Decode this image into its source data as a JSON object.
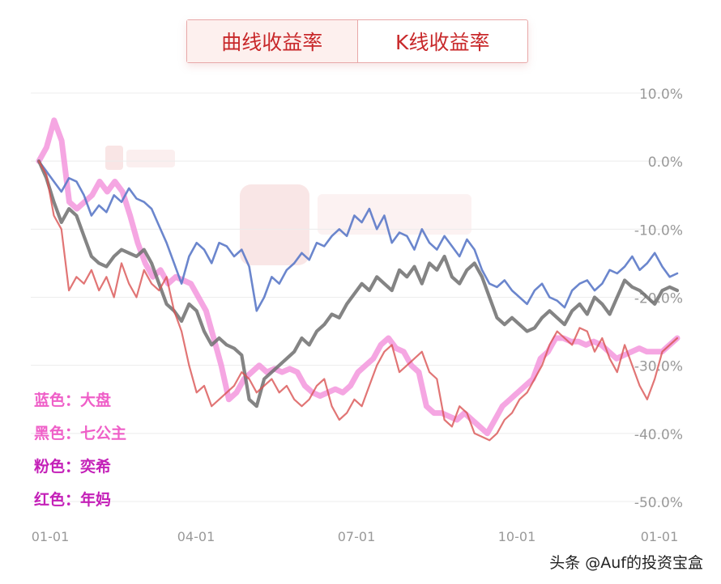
{
  "tabs": [
    {
      "label": "曲线收益率",
      "active": true
    },
    {
      "label": "K线收益率",
      "active": false
    }
  ],
  "legend": [
    {
      "text": "蓝色：大盘",
      "color": "#ef5fc8"
    },
    {
      "text": "黑色：七公主",
      "color": "#ef5fc8"
    },
    {
      "text": "粉色：奕希",
      "color": "#c420b8"
    },
    {
      "text": "红色：年妈",
      "color": "#c420b8"
    }
  ],
  "watermark": "头条 @Auf的投资宝盒",
  "chart_data": {
    "type": "line",
    "x_ticks": [
      "01-01",
      "04-01",
      "07-01",
      "10-01",
      "01-01"
    ],
    "y_ticks": [
      "10.0%",
      "0.0%",
      "-10.0%",
      "-20.0%",
      "-30.0%",
      "-40.0%",
      "-50.0%"
    ],
    "ylim": [
      -50,
      10
    ],
    "grid": true,
    "series": [
      {
        "color": "#5b79c8",
        "values": [
          0,
          -1.5,
          -3,
          -4.5,
          -2.5,
          -3,
          -5,
          -8,
          -6.5,
          -7.5,
          -5,
          -6,
          -4,
          -5.5,
          -6,
          -7,
          -9.5,
          -12,
          -15,
          -18,
          -14,
          -12,
          -13,
          -15,
          -12,
          -12.5,
          -14,
          -13,
          -15.5,
          -22,
          -20,
          -17,
          -18,
          -16,
          -15,
          -13.5,
          -14.5,
          -12,
          -12.5,
          -11,
          -10,
          -11,
          -8,
          -9,
          -7,
          -10,
          -8,
          -12,
          -10.5,
          -11,
          -13,
          -10,
          -12,
          -13,
          -11,
          -12.5,
          -14,
          -11.5,
          -13,
          -16,
          -18,
          -18.5,
          -17.5,
          -19,
          -20,
          -21,
          -19,
          -18,
          -20,
          -20.5,
          -21.5,
          -19,
          -18,
          -17.5,
          -19,
          -18,
          -16,
          -16.5,
          -15.5,
          -14,
          -16,
          -15,
          -13.5,
          -15.5,
          -17,
          -16.5
        ]
      },
      {
        "color": "#6e6e6e",
        "values": [
          0,
          -2.5,
          -6,
          -9,
          -7,
          -8,
          -11,
          -14,
          -15,
          -15.5,
          -14,
          -13,
          -13.5,
          -14,
          -13,
          -15,
          -18,
          -21,
          -22,
          -23.5,
          -21,
          -22,
          -25,
          -27,
          -26,
          -27,
          -27.5,
          -28.5,
          -35,
          -36,
          -32,
          -31,
          -30,
          -29,
          -28,
          -26,
          -27,
          -25,
          -24,
          -22.5,
          -23,
          -21,
          -19.5,
          -18,
          -19,
          -17,
          -18,
          -19,
          -16,
          -17,
          -15.5,
          -18,
          -15,
          -16,
          -14,
          -17,
          -18,
          -16,
          -15,
          -17,
          -20,
          -23,
          -24,
          -23,
          -24,
          -25,
          -24.5,
          -23,
          -22,
          -23,
          -24,
          -22,
          -21,
          -22.5,
          -20,
          -21,
          -22.5,
          -20,
          -17.5,
          -18.5,
          -19,
          -20,
          -21,
          -19,
          -18.5,
          -19
        ]
      },
      {
        "color": "#f397dd",
        "values": [
          0,
          2,
          6,
          3,
          -6,
          -7,
          -6,
          -5,
          -3,
          -4.5,
          -3,
          -4.5,
          -8,
          -12,
          -15,
          -17,
          -16,
          -18,
          -17,
          -17.5,
          -18,
          -20,
          -22,
          -26,
          -30,
          -35,
          -34,
          -32,
          -31,
          -30,
          -31,
          -30.5,
          -31,
          -30.5,
          -31,
          -33,
          -34,
          -34.5,
          -34,
          -33.5,
          -34,
          -33,
          -31,
          -30,
          -29,
          -27,
          -26,
          -27.5,
          -28,
          -30,
          -31,
          -36,
          -37,
          -37,
          -37.5,
          -38,
          -37,
          -38,
          -39,
          -40,
          -38,
          -36,
          -35,
          -34,
          -33,
          -32,
          -29,
          -28,
          -26,
          -26,
          -26.5,
          -26.5,
          -27,
          -26.5,
          -27,
          -28,
          -29,
          -28.5,
          -28,
          -27.5,
          -28,
          -28,
          -28,
          -27,
          -26
        ]
      },
      {
        "color": "#d95252",
        "values": [
          0,
          -2,
          -8,
          -10,
          -19,
          -17,
          -18,
          -16,
          -19,
          -17,
          -20,
          -15,
          -18,
          -20,
          -16,
          -18,
          -19,
          -17,
          -22,
          -25,
          -30,
          -34,
          -33,
          -36,
          -35,
          -34,
          -33,
          -31,
          -32,
          -34,
          -33,
          -32,
          -34,
          -33,
          -35,
          -36,
          -35,
          -33,
          -32,
          -36,
          -38,
          -37,
          -35,
          -36,
          -33,
          -30,
          -28,
          -27,
          -31,
          -30,
          -29,
          -28,
          -31,
          -32,
          -38,
          -39,
          -36,
          -37,
          -40,
          -40.5,
          -41,
          -40,
          -38,
          -37,
          -35,
          -34,
          -32,
          -30,
          -27,
          -25,
          -26,
          -27,
          -24.5,
          -25,
          -28,
          -26,
          -29,
          -31,
          -27,
          -30,
          -33,
          -35,
          -32,
          -28,
          -27,
          -26
        ]
      }
    ]
  }
}
